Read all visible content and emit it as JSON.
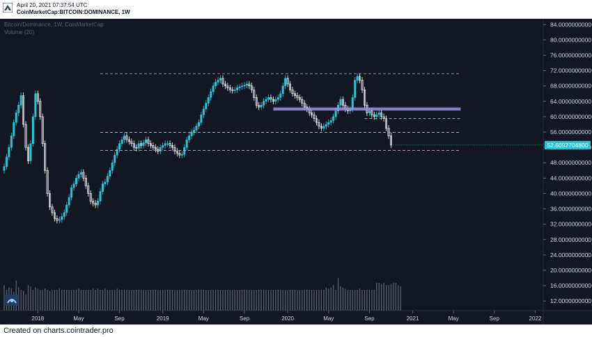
{
  "header": {
    "date": "April 20, 2021 07:37:54 UTC",
    "symbol": "CoinMarketCap:BITCOIN:DOMINANCE, 1W"
  },
  "legend": {
    "line1": "Bitcoin/Dominance, 1W, CoinMarketCap",
    "line2": "Volume (20)"
  },
  "footer": {
    "text": "Created on charts.cointrader.pro"
  },
  "colors": {
    "background": "#131722",
    "up": "#26c6da",
    "down": "#ffffff",
    "volume": "#7a7f8c",
    "level": "#b9bcc4",
    "band": "#9b8fe0",
    "axis_text": "#d1d4dc",
    "price_tag_bg": "#26c6da"
  },
  "chart_data": {
    "type": "candlestick",
    "title": "Bitcoin/Dominance, 1W, CoinMarketCap",
    "xlabel": "",
    "ylabel": "",
    "x_ticks": [
      "2018",
      "May",
      "Sep",
      "2019",
      "May",
      "Sep",
      "2020",
      "May",
      "Sep",
      "2021",
      "May",
      "Sep",
      "2022"
    ],
    "y_ticks": [
      "12.0000000000",
      "16.0000000000",
      "20.0000000000",
      "24.0000000000",
      "28.0000000000",
      "32.0000000000",
      "36.0000000000",
      "40.0000000000",
      "44.0000000000",
      "48.0000000000",
      "52.0000000000",
      "56.0000000000",
      "60.0000000000",
      "64.0000000000",
      "68.0000000000",
      "72.0000000000",
      "76.0000000000",
      "80.0000000000",
      "84.0000000000"
    ],
    "ylim": [
      9.5,
      85.5
    ],
    "last_price": "52.6092704800",
    "last_price_value": 52.6,
    "levels": [
      {
        "value": 71.2,
        "from_week": 40,
        "to_week": 190
      },
      {
        "value": 59.5,
        "from_week": 150,
        "to_week": 190
      },
      {
        "value": 55.9,
        "from_week": 40,
        "to_week": 190
      },
      {
        "value": 51.2,
        "from_week": 40,
        "to_week": 190
      }
    ],
    "band": {
      "value": 62.0,
      "from_week": 112,
      "to_week": 190
    },
    "series": [
      {
        "name": "Bitcoin/Dominance",
        "closes": [
          47.0,
          49.5,
          52.0,
          55.0,
          58.5,
          61.0,
          63.0,
          65.5,
          58.0,
          52.0,
          48.5,
          53.0,
          60.0,
          66.0,
          64.0,
          60.0,
          53.0,
          46.0,
          40.0,
          36.5,
          35.0,
          33.5,
          33.0,
          33.2,
          34.0,
          35.0,
          37.0,
          39.0,
          41.5,
          42.5,
          44.0,
          45.0,
          45.5,
          44.0,
          42.0,
          40.0,
          38.0,
          37.5,
          37.0,
          38.0,
          40.5,
          42.5,
          43.0,
          44.5,
          46.0,
          48.0,
          50.0,
          51.5,
          53.0,
          54.0,
          55.0,
          54.0,
          53.5,
          53.0,
          52.0,
          51.8,
          53.0,
          52.5,
          53.2,
          54.0,
          53.0,
          52.5,
          52.0,
          51.5,
          51.0,
          52.0,
          52.5,
          53.0,
          53.0,
          52.5,
          52.0,
          51.0,
          50.5,
          50.0,
          50.2,
          52.0,
          54.0,
          55.0,
          56.0,
          56.5,
          57.5,
          58.5,
          60.5,
          62.0,
          63.5,
          65.0,
          66.5,
          68.0,
          69.0,
          69.5,
          70.0,
          68.5,
          68.0,
          67.5,
          67.0,
          66.8,
          67.0,
          67.5,
          67.8,
          68.0,
          68.2,
          68.5,
          68.0,
          67.0,
          65.0,
          63.0,
          62.5,
          63.0,
          64.0,
          64.5,
          65.0,
          64.5,
          64.0,
          64.5,
          65.0,
          66.0,
          68.0,
          70.0,
          68.5,
          67.0,
          66.0,
          65.5,
          65.0,
          64.5,
          63.5,
          62.5,
          62.0,
          61.0,
          60.5,
          59.5,
          58.5,
          57.5,
          57.0,
          57.5,
          58.0,
          58.5,
          59.0,
          60.0,
          61.5,
          63.0,
          64.5,
          63.0,
          62.0,
          61.5,
          62.0,
          65.0,
          69.5,
          70.5,
          69.5,
          67.0,
          63.0,
          61.0,
          61.5,
          60.5,
          60.0,
          60.5,
          61.0,
          60.0,
          59.5,
          57.0,
          55.0,
          52.6
        ]
      }
    ],
    "volume": [
      22,
      18,
      20,
      19,
      16,
      26,
      20,
      18,
      17,
      14,
      22,
      21,
      18,
      20,
      19,
      18,
      18,
      19,
      18,
      17,
      18,
      18,
      18,
      19,
      18,
      18,
      18,
      18,
      18,
      18,
      18,
      19,
      18,
      18,
      18,
      18,
      18,
      19,
      18,
      19,
      18,
      18,
      19,
      18,
      18,
      18,
      18,
      19,
      18,
      18,
      18,
      18,
      18,
      18,
      18,
      18,
      18,
      18,
      18,
      18,
      18,
      18,
      18,
      18,
      18,
      18,
      18,
      18,
      18,
      18,
      18,
      18,
      18,
      18,
      18,
      18,
      18,
      18,
      18,
      18,
      18,
      18,
      18,
      18,
      18,
      18,
      18,
      18,
      18,
      18,
      18,
      18,
      18,
      18,
      18,
      18,
      18,
      18,
      18,
      18,
      18,
      18,
      18,
      18,
      18,
      18,
      18,
      18,
      18,
      18,
      18,
      18,
      18,
      18,
      18,
      18,
      18,
      18,
      18,
      18,
      18,
      18,
      18,
      18,
      18,
      18,
      18,
      18,
      18,
      18,
      18,
      18,
      18,
      18,
      20,
      19,
      20,
      22,
      18,
      28,
      21,
      20,
      19,
      18,
      18,
      18,
      18,
      18,
      19,
      18,
      18,
      18,
      18,
      18,
      18,
      24,
      24,
      23,
      24,
      22,
      22,
      23,
      24,
      24,
      22,
      21
    ]
  }
}
